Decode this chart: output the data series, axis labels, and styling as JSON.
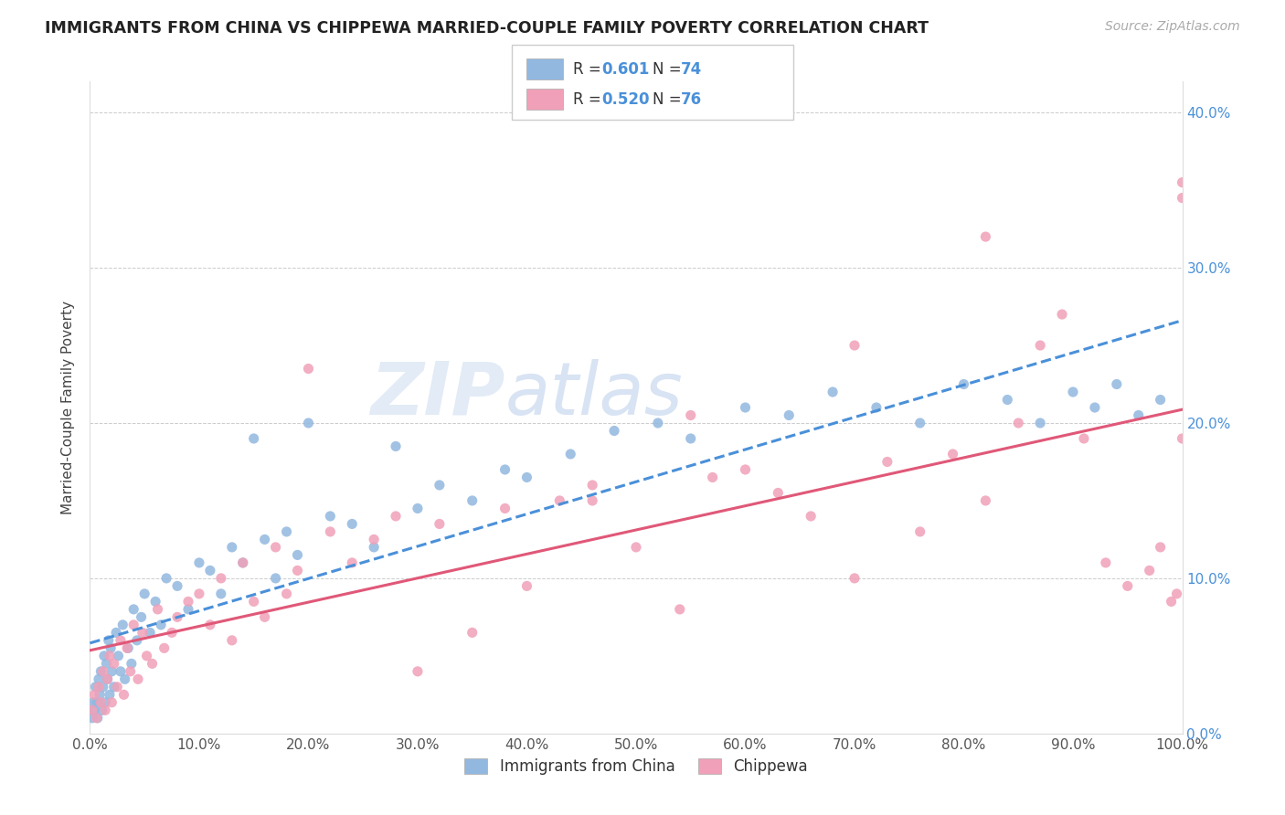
{
  "title": "IMMIGRANTS FROM CHINA VS CHIPPEWA MARRIED-COUPLE FAMILY POVERTY CORRELATION CHART",
  "source": "Source: ZipAtlas.com",
  "ylabel": "Married-Couple Family Poverty",
  "legend_label1": "Immigrants from China",
  "legend_label2": "Chippewa",
  "color_blue": "#92b8e0",
  "color_pink": "#f0a0b8",
  "line_blue": "#4a90d9",
  "line_pink": "#e05878",
  "watermark_zip": "ZIP",
  "watermark_atlas": "atlas",
  "xlim": [
    0,
    100
  ],
  "ylim": [
    0,
    42
  ],
  "xticks": [
    0,
    10,
    20,
    30,
    40,
    50,
    60,
    70,
    80,
    90,
    100
  ],
  "yticks": [
    0,
    10,
    20,
    30,
    40
  ],
  "blue_x": [
    0.2,
    0.3,
    0.4,
    0.5,
    0.6,
    0.7,
    0.8,
    0.9,
    1.0,
    1.1,
    1.2,
    1.3,
    1.4,
    1.5,
    1.6,
    1.7,
    1.8,
    1.9,
    2.0,
    2.2,
    2.4,
    2.6,
    2.8,
    3.0,
    3.2,
    3.5,
    3.8,
    4.0,
    4.3,
    4.7,
    5.0,
    5.5,
    6.0,
    6.5,
    7.0,
    8.0,
    9.0,
    10.0,
    11.0,
    12.0,
    13.0,
    14.0,
    15.0,
    16.0,
    17.0,
    18.0,
    19.0,
    20.0,
    22.0,
    24.0,
    26.0,
    28.0,
    30.0,
    32.0,
    35.0,
    38.0,
    40.0,
    44.0,
    48.0,
    52.0,
    55.0,
    60.0,
    64.0,
    68.0,
    72.0,
    76.0,
    80.0,
    84.0,
    87.0,
    90.0,
    92.0,
    94.0,
    96.0,
    98.0
  ],
  "blue_y": [
    1.0,
    2.0,
    1.5,
    3.0,
    2.0,
    1.0,
    3.5,
    2.5,
    4.0,
    1.5,
    3.0,
    5.0,
    2.0,
    4.5,
    3.5,
    6.0,
    2.5,
    5.5,
    4.0,
    3.0,
    6.5,
    5.0,
    4.0,
    7.0,
    3.5,
    5.5,
    4.5,
    8.0,
    6.0,
    7.5,
    9.0,
    6.5,
    8.5,
    7.0,
    10.0,
    9.5,
    8.0,
    11.0,
    10.5,
    9.0,
    12.0,
    11.0,
    19.0,
    12.5,
    10.0,
    13.0,
    11.5,
    20.0,
    14.0,
    13.5,
    12.0,
    18.5,
    14.5,
    16.0,
    15.0,
    17.0,
    16.5,
    18.0,
    19.5,
    20.0,
    19.0,
    21.0,
    20.5,
    22.0,
    21.0,
    20.0,
    22.5,
    21.5,
    20.0,
    22.0,
    21.0,
    22.5,
    20.5,
    21.5
  ],
  "pink_x": [
    0.2,
    0.4,
    0.6,
    0.8,
    1.0,
    1.2,
    1.4,
    1.6,
    1.8,
    2.0,
    2.2,
    2.5,
    2.8,
    3.1,
    3.4,
    3.7,
    4.0,
    4.4,
    4.8,
    5.2,
    5.7,
    6.2,
    6.8,
    7.5,
    8.0,
    9.0,
    10.0,
    11.0,
    12.0,
    13.0,
    14.0,
    15.0,
    16.0,
    17.0,
    18.0,
    19.0,
    20.0,
    22.0,
    24.0,
    26.0,
    28.0,
    30.0,
    32.0,
    35.0,
    38.0,
    40.0,
    43.0,
    46.0,
    50.0,
    54.0,
    57.0,
    60.0,
    63.0,
    66.0,
    70.0,
    73.0,
    76.0,
    79.0,
    82.0,
    85.0,
    87.0,
    89.0,
    91.0,
    93.0,
    95.0,
    97.0,
    98.0,
    99.0,
    99.5,
    100.0,
    100.0,
    100.0,
    82.0,
    70.0,
    55.0,
    46.0
  ],
  "pink_y": [
    1.5,
    2.5,
    1.0,
    3.0,
    2.0,
    4.0,
    1.5,
    3.5,
    5.0,
    2.0,
    4.5,
    3.0,
    6.0,
    2.5,
    5.5,
    4.0,
    7.0,
    3.5,
    6.5,
    5.0,
    4.5,
    8.0,
    5.5,
    6.5,
    7.5,
    8.5,
    9.0,
    7.0,
    10.0,
    6.0,
    11.0,
    8.5,
    7.5,
    12.0,
    9.0,
    10.5,
    23.5,
    13.0,
    11.0,
    12.5,
    14.0,
    4.0,
    13.5,
    6.5,
    14.5,
    9.5,
    15.0,
    16.0,
    12.0,
    8.0,
    16.5,
    17.0,
    15.5,
    14.0,
    10.0,
    17.5,
    13.0,
    18.0,
    15.0,
    20.0,
    25.0,
    27.0,
    19.0,
    11.0,
    9.5,
    10.5,
    12.0,
    8.5,
    9.0,
    19.0,
    34.5,
    35.5,
    32.0,
    25.0,
    20.5,
    15.0
  ]
}
